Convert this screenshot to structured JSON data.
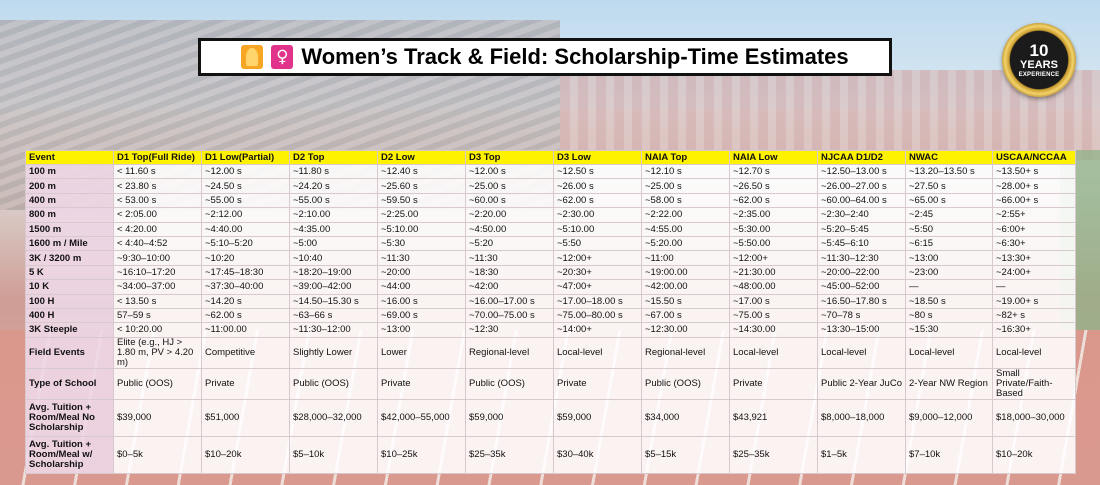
{
  "title": {
    "text": "Women’s Track & Field: Scholarship-Time Estimates"
  },
  "badge": {
    "number": "10",
    "word": "YEARS",
    "sub": "EXPERIENCE"
  },
  "table": {
    "headers": [
      "Event",
      "D1 Top(Full Ride)",
      "D1 Low(Partial)",
      "D2 Top",
      "D2 Low",
      "D3 Top",
      "D3 Low",
      "NAIA Top",
      "NAIA Low",
      "NJCAA D1/D2",
      "NWAC",
      "USCAA/NCCAA"
    ],
    "rows": [
      [
        "100 m",
        "< 11.60 s",
        "~12.00 s",
        "~11.80 s",
        "~12.40 s",
        "~12.00 s",
        "~12.50 s",
        "~12.10 s",
        "~12.70 s",
        "~12.50–13.00 s",
        "~13.20–13.50 s",
        "~13.50+ s"
      ],
      [
        "200 m",
        "< 23.80 s",
        "~24.50 s",
        "~24.20 s",
        "~25.60 s",
        "~25.00 s",
        "~26.00 s",
        "~25.00 s",
        "~26.50 s",
        "~26.00–27.00 s",
        "~27.50 s",
        "~28.00+ s"
      ],
      [
        "400 m",
        "< 53.00 s",
        "~55.00 s",
        "~55.00 s",
        "~59.50 s",
        "~60.00 s",
        "~62.00 s",
        "~58.00 s",
        "~62.00 s",
        "~60.00–64.00 s",
        "~65.00 s",
        "~66.00+ s"
      ],
      [
        "800 m",
        "< 2:05.00",
        "~2:12.00",
        "~2:10.00",
        "~2:25.00",
        "~2:20.00",
        "~2:30.00",
        "~2:22.00",
        "~2:35.00",
        "~2:30–2:40",
        "~2:45",
        "~2:55+"
      ],
      [
        "1500 m",
        "< 4:20.00",
        "~4:40.00",
        "~4:35.00",
        "~5:10.00",
        "~4:50.00",
        "~5:10.00",
        "~4:55.00",
        "~5:30.00",
        "~5:20–5:45",
        "~5:50",
        "~6:00+"
      ],
      [
        "1600 m / Mile",
        "< 4:40–4:52",
        "~5:10–5:20",
        "~5:00",
        "~5:30",
        "~5:20",
        "~5:50",
        "~5:20.00",
        "~5:50.00",
        "~5:45–6:10",
        "~6:15",
        "~6:30+"
      ],
      [
        "3K / 3200 m",
        "~9:30–10:00",
        "~10:20",
        "~10:40",
        "~11:30",
        "~11:30",
        "~12:00+",
        "~11:00",
        "~12:00+",
        "~11:30–12:30",
        "~13:00",
        "~13:30+"
      ],
      [
        "5 K",
        "~16:10–17:20",
        "~17:45–18:30",
        "~18:20–19:00",
        "~20:00",
        "~18:30",
        "~20:30+",
        "~19:00.00",
        "~21:30.00",
        "~20:00–22:00",
        "~23:00",
        "~24:00+"
      ],
      [
        "10 K",
        "~34:00–37:00",
        "~37:30–40:00",
        "~39:00–42:00",
        "~44:00",
        "~42:00",
        "~47:00+",
        "~42:00.00",
        "~48:00.00",
        "~45:00–52:00",
        "—",
        "—"
      ],
      [
        "100 H",
        "< 13.50 s",
        "~14.20 s",
        "~14.50–15.30 s",
        "~16.00 s",
        "~16.00–17.00 s",
        "~17.00–18.00 s",
        "~15.50 s",
        "~17.00 s",
        "~16.50–17.80 s",
        "~18.50 s",
        "~19.00+ s"
      ],
      [
        "400 H",
        "57–59 s",
        "~62.00 s",
        "~63–66 s",
        "~69.00 s",
        "~70.00–75.00 s",
        "~75.00–80.00 s",
        "~67.00 s",
        "~75.00 s",
        "~70–78 s",
        "~80 s",
        "~82+ s"
      ],
      [
        "3K Steeple",
        "< 10:20.00",
        "~11:00.00",
        "~11:30–12:00",
        "~13:00",
        "~12:30",
        "~14:00+",
        "~12:30.00",
        "~14:30.00",
        "~13:30–15:00",
        "~15:30",
        "~16:30+"
      ]
    ],
    "field_events": [
      "Field Events",
      "Elite (e.g., HJ > 1.80 m, PV > 4.20 m)",
      "Competitive",
      "Slightly Lower",
      "Lower",
      "Regional-level",
      "Local-level",
      "Regional-level",
      "Local-level",
      "Local-level",
      "Local-level",
      "Local-level"
    ],
    "school_type": [
      "Type of School",
      "Public (OOS)",
      "Private",
      "Public (OOS)",
      "Private",
      "Public (OOS)",
      "Private",
      "Public (OOS)",
      "Private",
      "Public 2-Year JuCo",
      "2-Year NW Region",
      "Small Private/Faith-Based"
    ],
    "tuition_no": [
      "Avg. Tuition + Room/Meal No Scholarship",
      "$39,000",
      "$51,000",
      "$28,000–32,000",
      "$42,000–55,000",
      "$59,000",
      "$59,000",
      "$34,000",
      "$43,921",
      "$8,000–18,000",
      "$9,000–12,000",
      "$18,000–30,000"
    ],
    "tuition_with": [
      "Avg. Tuition + Room/Meal w/ Scholarship",
      "$0–5k",
      "$10–20k",
      "$5–10k",
      "$10–25k",
      "$25–35k",
      "$30–40k",
      "$5–15k",
      "$25–35k",
      "$1–5k",
      "$7–10k",
      "$10–20k"
    ]
  }
}
